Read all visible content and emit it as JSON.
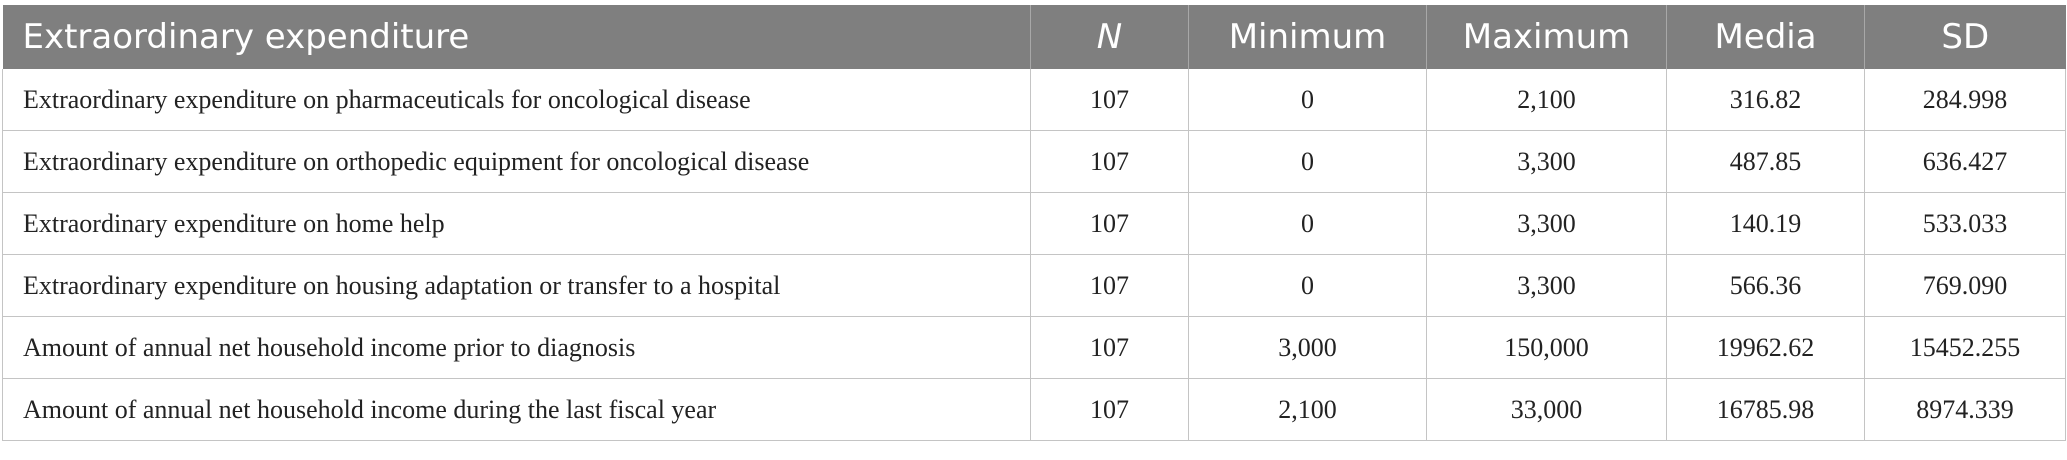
{
  "table": {
    "headers": [
      "Extraordinary expenditure",
      "N",
      "Minimum",
      "Maximum",
      "Media",
      "SD"
    ],
    "rows": [
      [
        "Extraordinary expenditure on pharmaceuticals for oncological disease",
        "107",
        "0",
        "2,100",
        "316.82",
        "284.998"
      ],
      [
        "Extraordinary expenditure on orthopedic equipment for oncological disease",
        "107",
        "0",
        "3,300",
        "487.85",
        "636.427"
      ],
      [
        "Extraordinary expenditure on home help",
        "107",
        "0",
        "3,300",
        "140.19",
        "533.033"
      ],
      [
        "Extraordinary expenditure on housing adaptation or transfer to a hospital",
        "107",
        "0",
        "3,300",
        "566.36",
        "769.090"
      ],
      [
        "Amount of annual net household income prior to diagnosis",
        "107",
        "3,000",
        "150,000",
        "19962.62",
        "15452.255"
      ],
      [
        "Amount of annual net household income during the last fiscal year",
        "107",
        "2,100",
        "33,000",
        "16785.98",
        "8974.339"
      ]
    ]
  },
  "colors": {
    "header_bg": "#7f7f7f",
    "header_text": "#ffffff",
    "border": "#c4c4c4"
  }
}
